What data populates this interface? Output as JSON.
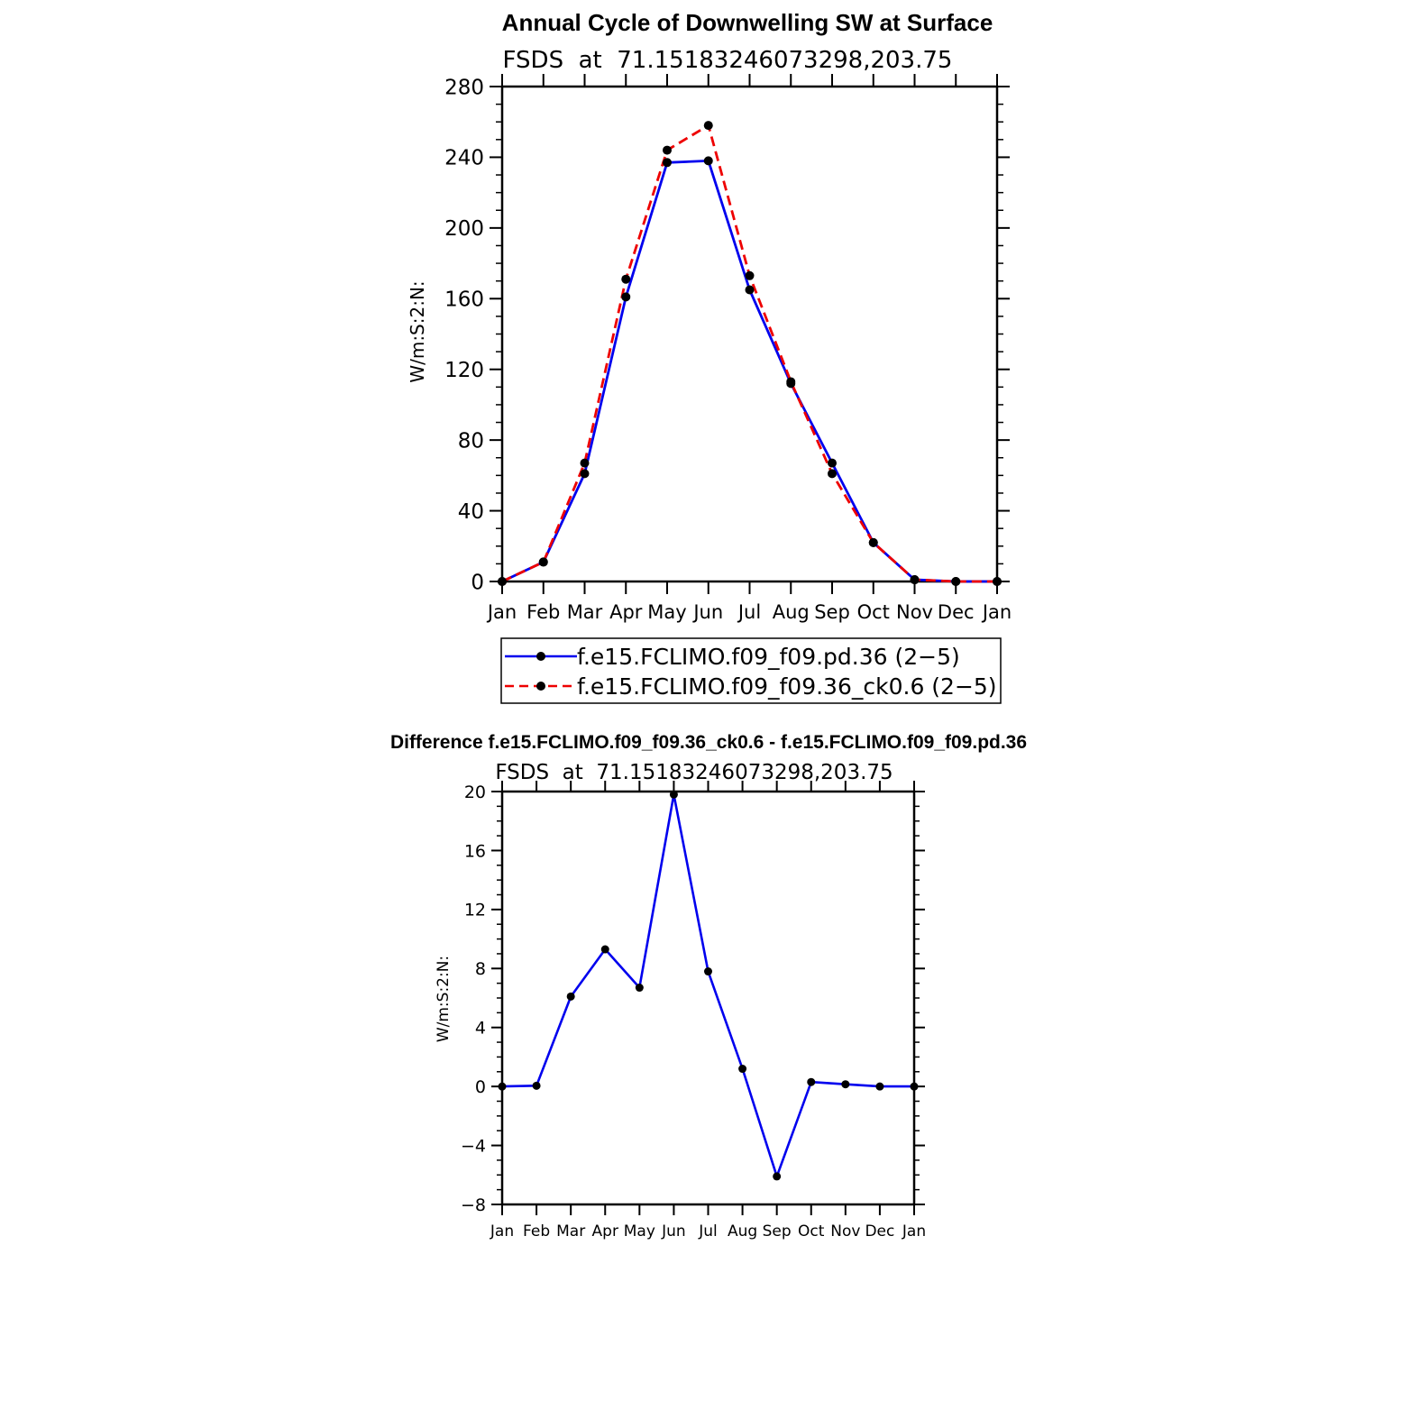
{
  "colors": {
    "control": "#0000ee",
    "test": "#ee0000",
    "diff": "#0000ee",
    "marker": "#000000",
    "axis": "#000000"
  },
  "chart_data": [
    {
      "type": "line",
      "title": "Annual Cycle of Downwelling SW at Surface",
      "subtitle": "FSDS  at  71.15183246073298,203.75",
      "ylabel": "W/m:S:2:N:",
      "xlabel": "",
      "categories": [
        "Jan",
        "Feb",
        "Mar",
        "Apr",
        "May",
        "Jun",
        "Jul",
        "Aug",
        "Sep",
        "Oct",
        "Nov",
        "Dec",
        "Jan"
      ],
      "ylim": [
        0,
        280
      ],
      "yticks": [
        "0",
        "40",
        "80",
        "120",
        "160",
        "200",
        "240",
        "280"
      ],
      "series": [
        {
          "name": "f.e15.FCLIMO.f09_f09.pd.36 (2−5)",
          "style": "solid",
          "color": "#0000ee",
          "values": [
            0,
            11,
            61,
            161,
            237,
            238,
            165,
            112,
            67,
            22,
            1,
            0,
            0
          ]
        },
        {
          "name": "f.e15.FCLIMO.f09_f09.36_ck0.6 (2−5)",
          "style": "dashed",
          "color": "#ee0000",
          "values": [
            0,
            11,
            67,
            171,
            244,
            258,
            173,
            113,
            61,
            22,
            1,
            0,
            0
          ]
        }
      ],
      "legend": "below"
    },
    {
      "type": "line",
      "title": "Difference f.e15.FCLIMO.f09_f09.36_ck0.6 - f.e15.FCLIMO.f09_f09.pd.36",
      "subtitle": "FSDS  at  71.15183246073298,203.75",
      "ylabel": "W/m:S:2:N:",
      "xlabel": "",
      "categories": [
        "Jan",
        "Feb",
        "Mar",
        "Apr",
        "May",
        "Jun",
        "Jul",
        "Aug",
        "Sep",
        "Oct",
        "Nov",
        "Dec",
        "Jan"
      ],
      "ylim": [
        -8,
        20
      ],
      "yticks": [
        "−8",
        "−4",
        "0",
        "4",
        "8",
        "12",
        "16",
        "20"
      ],
      "series": [
        {
          "name": "difference",
          "style": "solid",
          "color": "#0000ee",
          "values": [
            0,
            0.05,
            6.1,
            9.3,
            6.7,
            19.8,
            7.8,
            1.2,
            -6.1,
            0.3,
            0.15,
            0,
            0
          ]
        }
      ]
    }
  ]
}
